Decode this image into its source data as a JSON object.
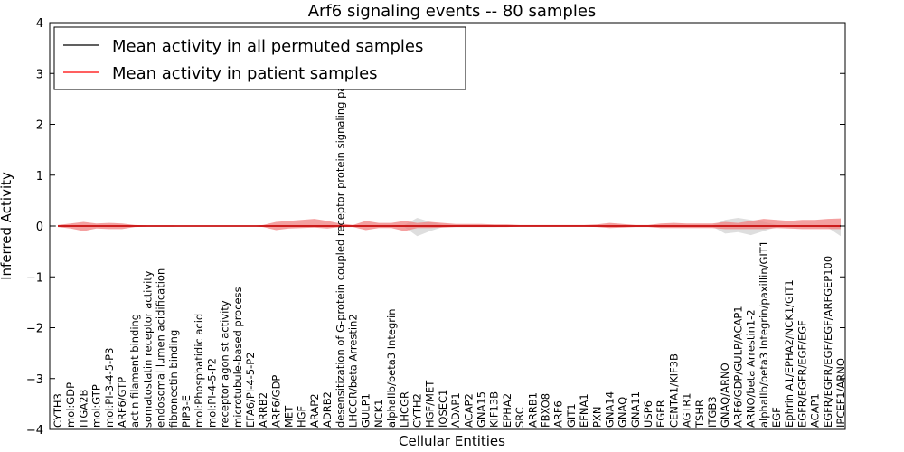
{
  "chart_data": {
    "type": "line",
    "title": "Arf6 signaling events -- 80 samples",
    "xlabel": "Cellular Entities",
    "ylabel": "Inferred Activity",
    "ylim": [
      -4,
      4
    ],
    "yticks": [
      -4,
      -3,
      -2,
      -1,
      0,
      1,
      2,
      3,
      4
    ],
    "legend": {
      "position": "top-left",
      "entries": [
        {
          "label": "Mean activity in all permuted samples",
          "color": "#000000"
        },
        {
          "label": "Mean activity in patient samples",
          "color": "#ff0000"
        }
      ]
    },
    "categories": [
      "CYTH3",
      "mol:GDP",
      "ITGA2B",
      "mol:GTP",
      "mol:PI-3-4-5-P3",
      "ARF6/GTP",
      "actin filament binding",
      "somatostatin receptor activity",
      "endosomal lumen acidification",
      "fibronectin binding",
      "PIP3-E",
      "mol:Phosphatidic acid",
      "mol:PI-4-5-P2",
      "receptor agonist activity",
      "microtubule-based process",
      "EFA6/PI-4-5-P2",
      "ARRB2",
      "ARF6/GDP",
      "MET",
      "HGF",
      "ARAP2",
      "ADRB2",
      "desensitization of G-protein coupled receptor protein signaling pathway",
      "LHCGR/beta Arrestin2",
      "GULP1",
      "NCK1",
      "alphaIIb/beta3 Integrin",
      "LHCGR",
      "CYTH2",
      "HGF/MET",
      "IQSEC1",
      "ADAP1",
      "ACAP2",
      "GNA15",
      "KIF13B",
      "EPHA2",
      "SRC",
      "ARRB1",
      "FBXO8",
      "ARF6",
      "GIT1",
      "EFNA1",
      "PXN",
      "GNA14",
      "GNAQ",
      "GNA11",
      "USP6",
      "EGFR",
      "CENTA1/KIF3B",
      "AGTR1",
      "TSHR",
      "ITGB3",
      "GNAQ/ARNO",
      "ARF6/GDP/GULP/ACAP1",
      "ARNO/beta Arrestin1-2",
      "alphaIIb/beta3 Integrin/paxillin/GIT1",
      "EGF",
      "Ephrin A1/EPHA2/NCK1/GIT1",
      "EGFR/EGFR/EGF/EGF",
      "ACAP1",
      "EGFR/EGFR/EGF/EGF/ARFGEP100",
      "IPCEF1/ARNO"
    ],
    "series": [
      {
        "name": "Mean activity in all permuted samples",
        "color": "#000000",
        "values": [
          0,
          0,
          0,
          0,
          0,
          0,
          0,
          0,
          0,
          0,
          0,
          0,
          0,
          0,
          0,
          0,
          0,
          0,
          0,
          0,
          0,
          0,
          0,
          0,
          0,
          0,
          0,
          0,
          0,
          0,
          0,
          0,
          0,
          0,
          0,
          0,
          0,
          0,
          0,
          0,
          0,
          0,
          0,
          0,
          0,
          0,
          0,
          0,
          0,
          0,
          0,
          0,
          0,
          0,
          0,
          0,
          0,
          0,
          0,
          0,
          0,
          0
        ],
        "band_upper": [
          0,
          0,
          0.01,
          0.01,
          0.01,
          0.01,
          0,
          0,
          0,
          0,
          0,
          0,
          0,
          0,
          0,
          0,
          0,
          0.02,
          0.02,
          0.02,
          0.02,
          0.02,
          0,
          0.01,
          0.02,
          0.01,
          0.01,
          0.02,
          0.16,
          0.08,
          0.02,
          0.02,
          0.02,
          0.02,
          0.02,
          0.01,
          0,
          0,
          0,
          0,
          0,
          0,
          0,
          0.01,
          0.01,
          0,
          0,
          0.01,
          0.01,
          0.01,
          0.01,
          0.01,
          0.12,
          0.16,
          0.12,
          0.08,
          0.02,
          0.01,
          0.02,
          0.02,
          0.02,
          0.02
        ],
        "band_lower": [
          0,
          0,
          -0.01,
          -0.01,
          -0.01,
          -0.01,
          0,
          0,
          0,
          0,
          0,
          0,
          0,
          0,
          0,
          0,
          0,
          -0.02,
          -0.02,
          -0.02,
          -0.02,
          -0.02,
          0,
          -0.01,
          -0.02,
          -0.01,
          -0.01,
          -0.02,
          -0.2,
          -0.1,
          -0.02,
          -0.02,
          -0.02,
          -0.02,
          -0.02,
          -0.01,
          0,
          0,
          0,
          0,
          0,
          0,
          0,
          -0.01,
          -0.01,
          0,
          0,
          -0.01,
          -0.01,
          -0.01,
          -0.01,
          -0.01,
          -0.15,
          -0.12,
          -0.18,
          -0.1,
          -0.02,
          -0.02,
          -0.02,
          -0.02,
          -0.03,
          -0.2
        ]
      },
      {
        "name": "Mean activity in patient samples",
        "color": "#ff0000",
        "values": [
          0,
          0,
          0,
          0,
          0,
          0,
          0,
          0,
          0,
          0,
          0,
          0,
          0,
          0,
          0,
          0,
          0,
          0,
          0,
          0,
          0,
          0,
          0,
          0,
          0,
          0,
          0,
          0,
          0,
          0,
          0,
          0,
          0,
          0,
          0,
          0,
          0,
          0,
          0,
          0,
          0,
          0,
          0,
          0,
          0,
          0,
          0,
          0,
          0,
          0,
          0,
          0,
          0,
          0,
          0,
          0,
          0,
          0,
          0,
          0,
          0,
          0
        ],
        "band_upper": [
          0.02,
          0.05,
          0.08,
          0.05,
          0.06,
          0.05,
          0.02,
          0.01,
          0.01,
          0.01,
          0,
          0,
          0,
          0,
          0,
          0,
          0.02,
          0.08,
          0.1,
          0.12,
          0.14,
          0.1,
          0.05,
          0.02,
          0.1,
          0.06,
          0.06,
          0.1,
          0.06,
          0.08,
          0.06,
          0.04,
          0.04,
          0.04,
          0.03,
          0.03,
          0.02,
          0.02,
          0.02,
          0.02,
          0.02,
          0.02,
          0.03,
          0.06,
          0.04,
          0.02,
          0.02,
          0.05,
          0.06,
          0.05,
          0.05,
          0.05,
          0.08,
          0.06,
          0.1,
          0.14,
          0.12,
          0.1,
          0.12,
          0.12,
          0.14,
          0.15
        ],
        "band_lower": [
          -0.02,
          -0.05,
          -0.1,
          -0.05,
          -0.06,
          -0.06,
          -0.02,
          -0.01,
          -0.01,
          -0.01,
          0,
          0,
          0,
          0,
          0,
          0,
          -0.02,
          -0.08,
          -0.05,
          -0.04,
          -0.03,
          -0.05,
          -0.02,
          -0.02,
          -0.08,
          -0.04,
          -0.04,
          -0.1,
          -0.04,
          -0.04,
          -0.03,
          -0.02,
          -0.02,
          -0.02,
          -0.02,
          -0.02,
          -0.01,
          -0.01,
          -0.01,
          -0.01,
          -0.01,
          -0.01,
          -0.02,
          -0.04,
          -0.03,
          -0.02,
          -0.02,
          -0.04,
          -0.04,
          -0.04,
          -0.04,
          -0.04,
          -0.06,
          -0.06,
          -0.06,
          -0.06,
          -0.04,
          -0.05,
          -0.06,
          -0.06,
          -0.06,
          -0.06
        ]
      }
    ]
  }
}
